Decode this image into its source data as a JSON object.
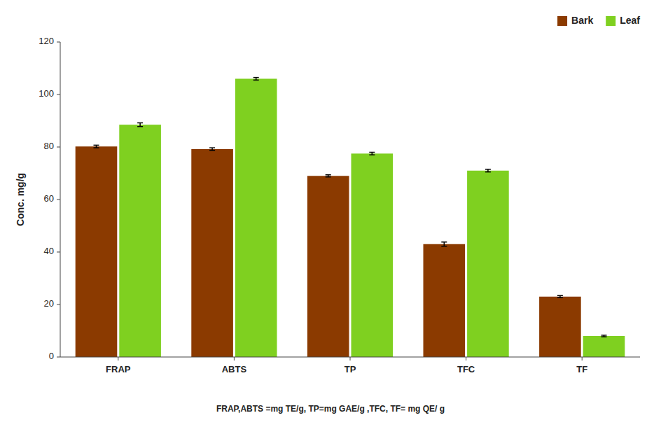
{
  "chart_data": {
    "type": "bar",
    "y_label": "Conc. mg/g",
    "annotations": [
      "FRAP,ABTS =mg TE/g, TP=mg GAE/g ,TFC, TF= mg QE/ g"
    ],
    "categories": [
      "FRAP",
      "ABTS",
      "TP",
      "TFC",
      "TF"
    ],
    "series": [
      {
        "name": "Bark",
        "color": "#8B3A00",
        "values": [
          80.2,
          79.2,
          69.0,
          43.0,
          23.0
        ],
        "errors": [
          0.5,
          0.5,
          0.4,
          0.8,
          0.4
        ]
      },
      {
        "name": "Leaf",
        "color": "#7FD020",
        "values": [
          88.5,
          106.0,
          77.5,
          71.0,
          8.0
        ],
        "errors": [
          0.7,
          0.5,
          0.5,
          0.5,
          0.3
        ]
      }
    ],
    "ylim": [
      0,
      120
    ],
    "yticks": [
      0,
      20,
      40,
      60,
      80,
      100,
      120
    ],
    "grid": false,
    "legend": "upper right"
  }
}
